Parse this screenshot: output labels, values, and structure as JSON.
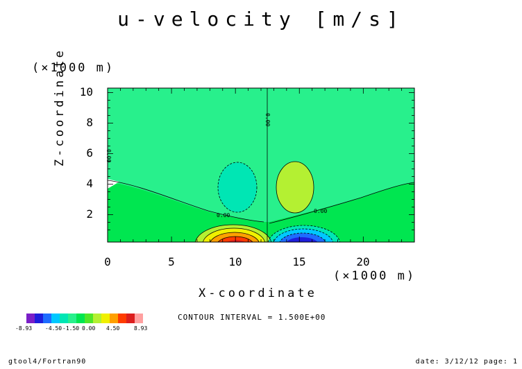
{
  "chart_data": {
    "type": "contour",
    "title": "u-velocity [m/s]",
    "xlabel": "X-coordinate",
    "ylabel": "Z-coordinate",
    "x_unit": "(×1000 m)",
    "y_unit": "(×1000 m)",
    "xlim": [
      0,
      24
    ],
    "ylim": [
      0.2,
      10.3
    ],
    "x_ticks": [
      0,
      5,
      10,
      15,
      20
    ],
    "y_ticks": [
      2,
      4,
      6,
      8,
      10
    ],
    "x_tick_labels": [
      "0",
      "5",
      "10",
      "15",
      "20"
    ],
    "y_tick_labels": [
      "2",
      "4",
      "6",
      "8",
      "10"
    ],
    "contour_interval": "CONTOUR INTERVAL = 1.500E+00",
    "contour_labels": [
      "0.00",
      "0.00",
      "0.00",
      "0.00"
    ],
    "colorbar": {
      "colors": [
        "#7a1fc7",
        "#1e1edc",
        "#1e6cff",
        "#00c8ff",
        "#00e6b4",
        "#28f08c",
        "#00e650",
        "#50e628",
        "#b4f032",
        "#f0f000",
        "#ffa000",
        "#ff3c00",
        "#dc1e1e",
        "#ffa0a0"
      ],
      "labels": [
        "-8.93",
        "-4.50",
        "-1.50",
        "0.00",
        "4.50",
        "8.93"
      ]
    },
    "features": [
      {
        "kind": "positive_lobe_surface",
        "x": 10.2,
        "z": 0.3,
        "value": 8.93
      },
      {
        "kind": "negative_lobe_surface",
        "x": 14.8,
        "z": 0.3,
        "value": -8.93
      },
      {
        "kind": "weak_negative_cell",
        "x": 10.5,
        "z": 3.8
      },
      {
        "kind": "weak_positive_cell",
        "x": 14.5,
        "z": 3.8
      },
      {
        "kind": "zero_contour_vertical",
        "x": 12.5
      }
    ]
  },
  "footer": {
    "left": "gtool4/Fortran90",
    "right": "date: 3/12/12 page: 1"
  }
}
